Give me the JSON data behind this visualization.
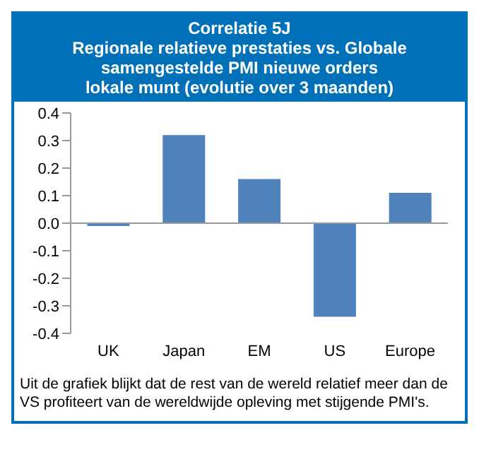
{
  "chart_data": {
    "type": "bar",
    "title": "Correlatie 5J\nRegionale relatieve prestaties vs. Globale\nsamengestelde PMI nieuwe orders\nlokale munt (evolutie over 3 maanden)",
    "categories": [
      "UK",
      "Japan",
      "EM",
      "US",
      "Europe"
    ],
    "values": [
      -0.01,
      0.32,
      0.16,
      -0.34,
      0.11
    ],
    "color": "#4f81bd",
    "ylim": [
      -0.4,
      0.4
    ],
    "yticks": [
      -0.4,
      -0.3,
      -0.2,
      -0.1,
      {
        "value": 0,
        "label": "0.0"
      },
      0.1,
      0.2,
      0.3,
      0.4
    ],
    "annotations": [
      "Uit de grafiek blijkt dat de rest van de wereld relatief meer dan de VS profiteert van de wereldwijde opleving met stijgende PMI's."
    ]
  }
}
